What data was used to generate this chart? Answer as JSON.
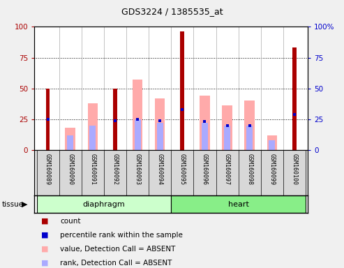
{
  "title": "GDS3224 / 1385535_at",
  "samples": [
    "GSM160089",
    "GSM160090",
    "GSM160091",
    "GSM160092",
    "GSM160093",
    "GSM160094",
    "GSM160095",
    "GSM160096",
    "GSM160097",
    "GSM160098",
    "GSM160099",
    "GSM160100"
  ],
  "tissue_groups": [
    {
      "label": "diaphragm",
      "start": 0,
      "end": 6
    },
    {
      "label": "heart",
      "start": 6,
      "end": 12
    }
  ],
  "count": [
    50,
    0,
    0,
    50,
    0,
    0,
    96,
    0,
    0,
    0,
    0,
    83
  ],
  "percentile_rank": [
    25,
    0,
    0,
    24,
    25,
    24,
    33,
    23,
    20,
    20,
    0,
    29
  ],
  "value_absent": [
    0,
    18,
    38,
    0,
    57,
    42,
    0,
    44,
    36,
    40,
    12,
    0
  ],
  "rank_absent": [
    0,
    12,
    20,
    0,
    25,
    22,
    0,
    22,
    20,
    20,
    8,
    0
  ],
  "count_color": "#aa0000",
  "percentile_color": "#0000cc",
  "value_absent_color": "#ffaaaa",
  "rank_absent_color": "#aaaaff",
  "ylim_left": [
    0,
    100
  ],
  "ylim_right": [
    0,
    100
  ],
  "yticks": [
    0,
    25,
    50,
    75,
    100
  ],
  "ytick_labels_left": [
    "0",
    "25",
    "50",
    "75",
    "100"
  ],
  "ytick_labels_right": [
    "0",
    "25",
    "50",
    "75",
    "100%"
  ],
  "bg_color": "#d8d8d8",
  "plot_bg_color": "#ffffff",
  "tissue_box_color_diaphragm": "#ccffcc",
  "tissue_box_color_heart": "#88ee88",
  "fig_bg": "#f0f0f0"
}
